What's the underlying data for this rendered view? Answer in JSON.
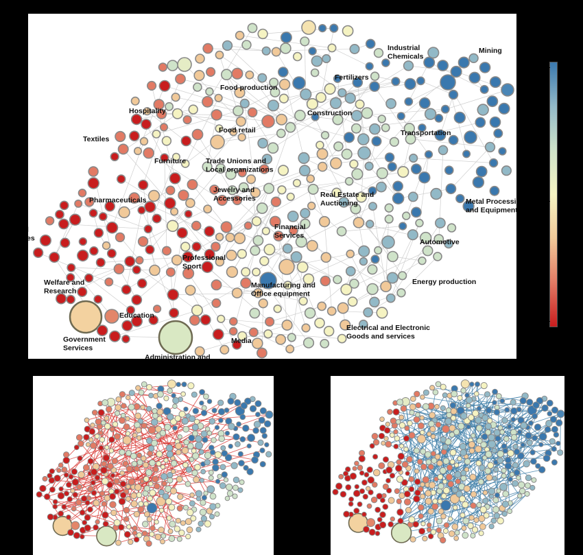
{
  "main_labels": [
    {
      "id": "industrial-chemicals",
      "lines": [
        "Industrial",
        "Chemicals"
      ]
    },
    {
      "id": "mining",
      "lines": [
        "Mining"
      ]
    },
    {
      "id": "fertilizers",
      "lines": [
        "Fertilizers"
      ]
    },
    {
      "id": "food-production",
      "lines": [
        "Food production"
      ]
    },
    {
      "id": "hospitality",
      "lines": [
        "Hospitality"
      ]
    },
    {
      "id": "construction",
      "lines": [
        "Construction"
      ]
    },
    {
      "id": "food-retail",
      "lines": [
        "Food retail"
      ]
    },
    {
      "id": "textiles",
      "lines": [
        "Textiles"
      ]
    },
    {
      "id": "transportation",
      "lines": [
        "Transportation"
      ]
    },
    {
      "id": "furniture",
      "lines": [
        "Furniture"
      ]
    },
    {
      "id": "trade-unions",
      "lines": [
        "Trade Unions and",
        "Local organizations"
      ]
    },
    {
      "id": "jewelry",
      "lines": [
        "Jewelry and",
        "Accessories"
      ]
    },
    {
      "id": "real-estate",
      "lines": [
        "Real Estate and",
        "Auctioning"
      ]
    },
    {
      "id": "pharmaceuticals",
      "lines": [
        "Pharmaceuticals"
      ]
    },
    {
      "id": "metal-processing",
      "lines": [
        "Metal Processing",
        "and Equipment"
      ]
    },
    {
      "id": "financial-services",
      "lines": [
        "Financial",
        "Services"
      ]
    },
    {
      "id": "automotive",
      "lines": [
        "Automotive"
      ]
    },
    {
      "id": "cut-left",
      "lines": [
        "l",
        "es"
      ]
    },
    {
      "id": "professional-sport",
      "lines": [
        "Professional",
        "Sport"
      ]
    },
    {
      "id": "energy-production",
      "lines": [
        "Energy production"
      ]
    },
    {
      "id": "welfare-research",
      "lines": [
        "Welfare and",
        "Research"
      ]
    },
    {
      "id": "manufacturing",
      "lines": [
        "Manufacturing and",
        "Office equipment"
      ]
    },
    {
      "id": "education",
      "lines": [
        "Education"
      ]
    },
    {
      "id": "electrical",
      "lines": [
        "Electrical and Electronic",
        "Goods and services"
      ]
    },
    {
      "id": "government",
      "lines": [
        "Government",
        "Services"
      ]
    },
    {
      "id": "media",
      "lines": [
        "Media"
      ]
    },
    {
      "id": "administration",
      "lines": [
        "Administration and"
      ]
    }
  ],
  "colors": {
    "scale": [
      "#c81d1e",
      "#e27a64",
      "#f1c999",
      "#f5f3c2",
      "#cfe3c9",
      "#92b9c7",
      "#3a78ae"
    ],
    "node_stroke": "#888888",
    "main_edge": "#c9c9c9",
    "left_edge": "#d7302b",
    "right_edge": "#3f7ea8"
  }
}
